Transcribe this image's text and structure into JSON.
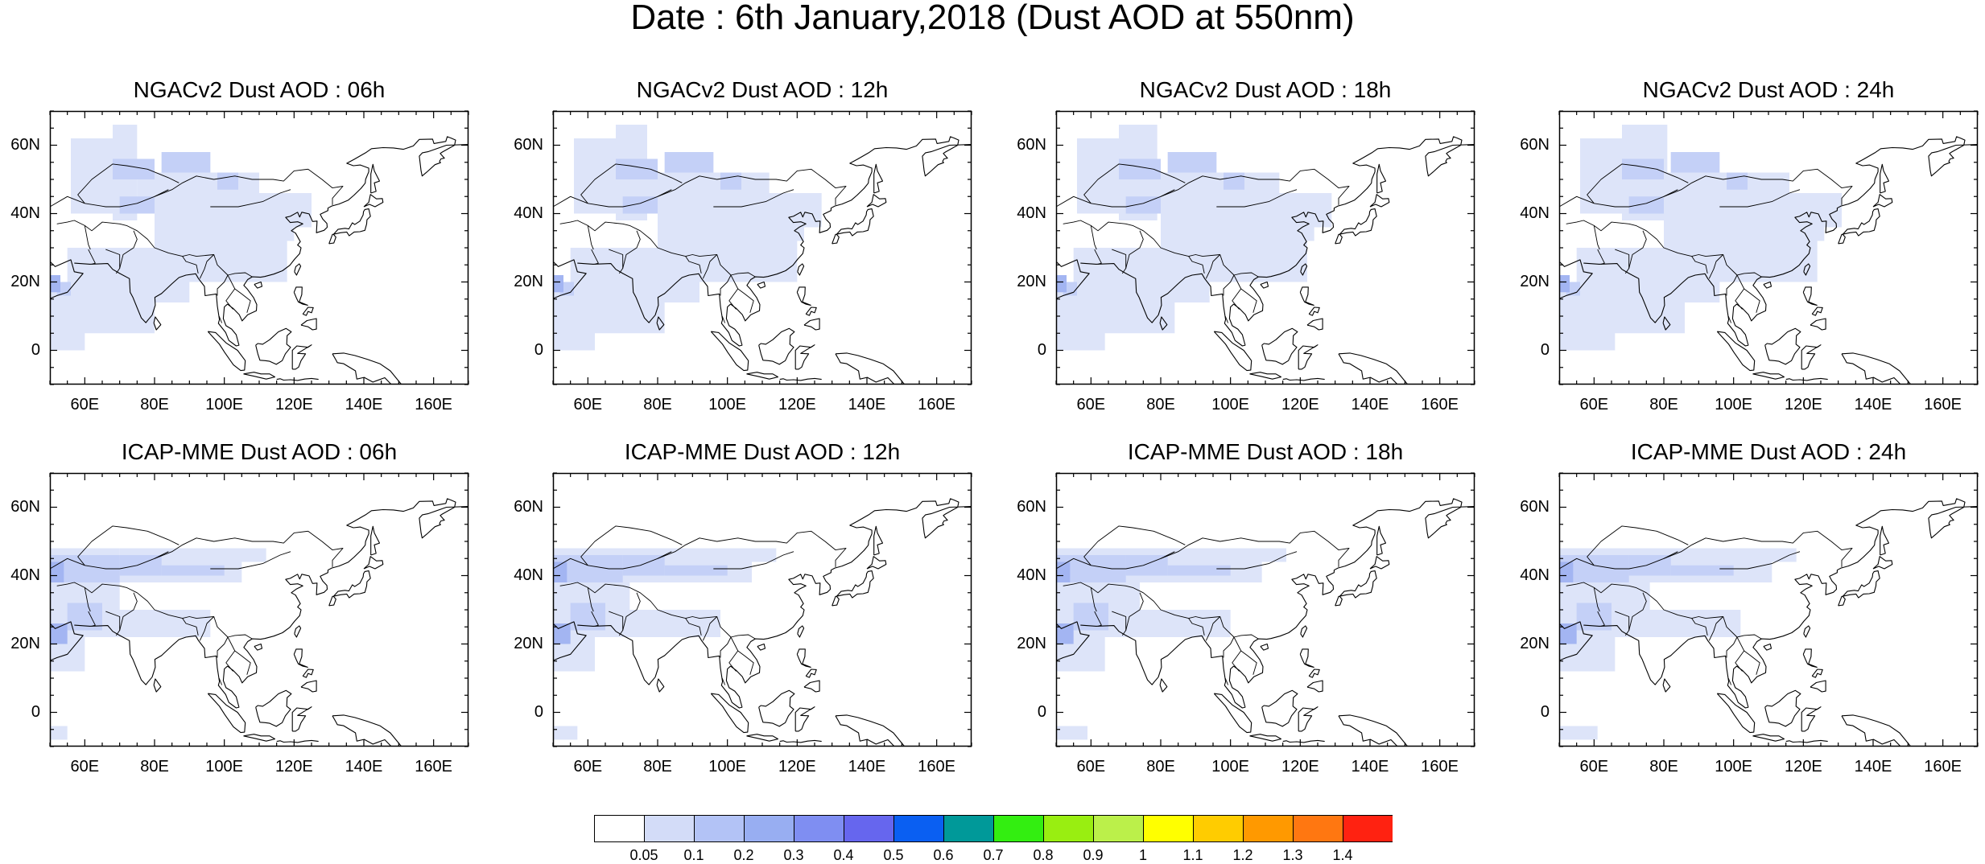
{
  "title": "Date : 6th January,2018 (Dust AOD at 550nm)",
  "lat_labels": [
    "60N",
    "40N",
    "20N",
    "0"
  ],
  "lon_labels": [
    "60E",
    "80E",
    "100E",
    "120E",
    "140E",
    "160E"
  ],
  "panels": [
    {
      "title": "NGACv2 Dust AOD : 06h",
      "model": "NGACv2",
      "hour": "06h"
    },
    {
      "title": "NGACv2 Dust AOD : 12h",
      "model": "NGACv2",
      "hour": "12h"
    },
    {
      "title": "NGACv2 Dust AOD : 18h",
      "model": "NGACv2",
      "hour": "18h"
    },
    {
      "title": "NGACv2 Dust AOD : 24h",
      "model": "NGACv2",
      "hour": "24h"
    },
    {
      "title": "ICAP-MME Dust AOD : 06h",
      "model": "ICAP-MME",
      "hour": "06h"
    },
    {
      "title": "ICAP-MME Dust AOD : 12h",
      "model": "ICAP-MME",
      "hour": "12h"
    },
    {
      "title": "ICAP-MME Dust AOD : 18h",
      "model": "ICAP-MME",
      "hour": "18h"
    },
    {
      "title": "ICAP-MME Dust AOD : 24h",
      "model": "ICAP-MME",
      "hour": "24h"
    }
  ],
  "colorbar": {
    "labels": [
      "0.05",
      "0.1",
      "0.2",
      "0.3",
      "0.4",
      "0.5",
      "0.6",
      "0.7",
      "0.8",
      "0.9",
      "1",
      "1.1",
      "1.2",
      "1.3",
      "1.4"
    ],
    "colors": [
      "#ffffff",
      "#d3dcf8",
      "#b3c3f6",
      "#98aef2",
      "#7f8ef2",
      "#6666ee",
      "#0a5ff2",
      "#009999",
      "#33ee11",
      "#99ee11",
      "#bbf04a",
      "#ffff00",
      "#ffcc00",
      "#ff9900",
      "#ff7711",
      "#ff2211"
    ]
  },
  "map": {
    "extent_lon": [
      50,
      170
    ],
    "extent_lat": [
      -10,
      70
    ],
    "shade_colors": {
      "light": "#dde4f9",
      "medium": "#c4d0f7",
      "dark": "#a3b5f2"
    },
    "coastline_color": "#000000"
  }
}
